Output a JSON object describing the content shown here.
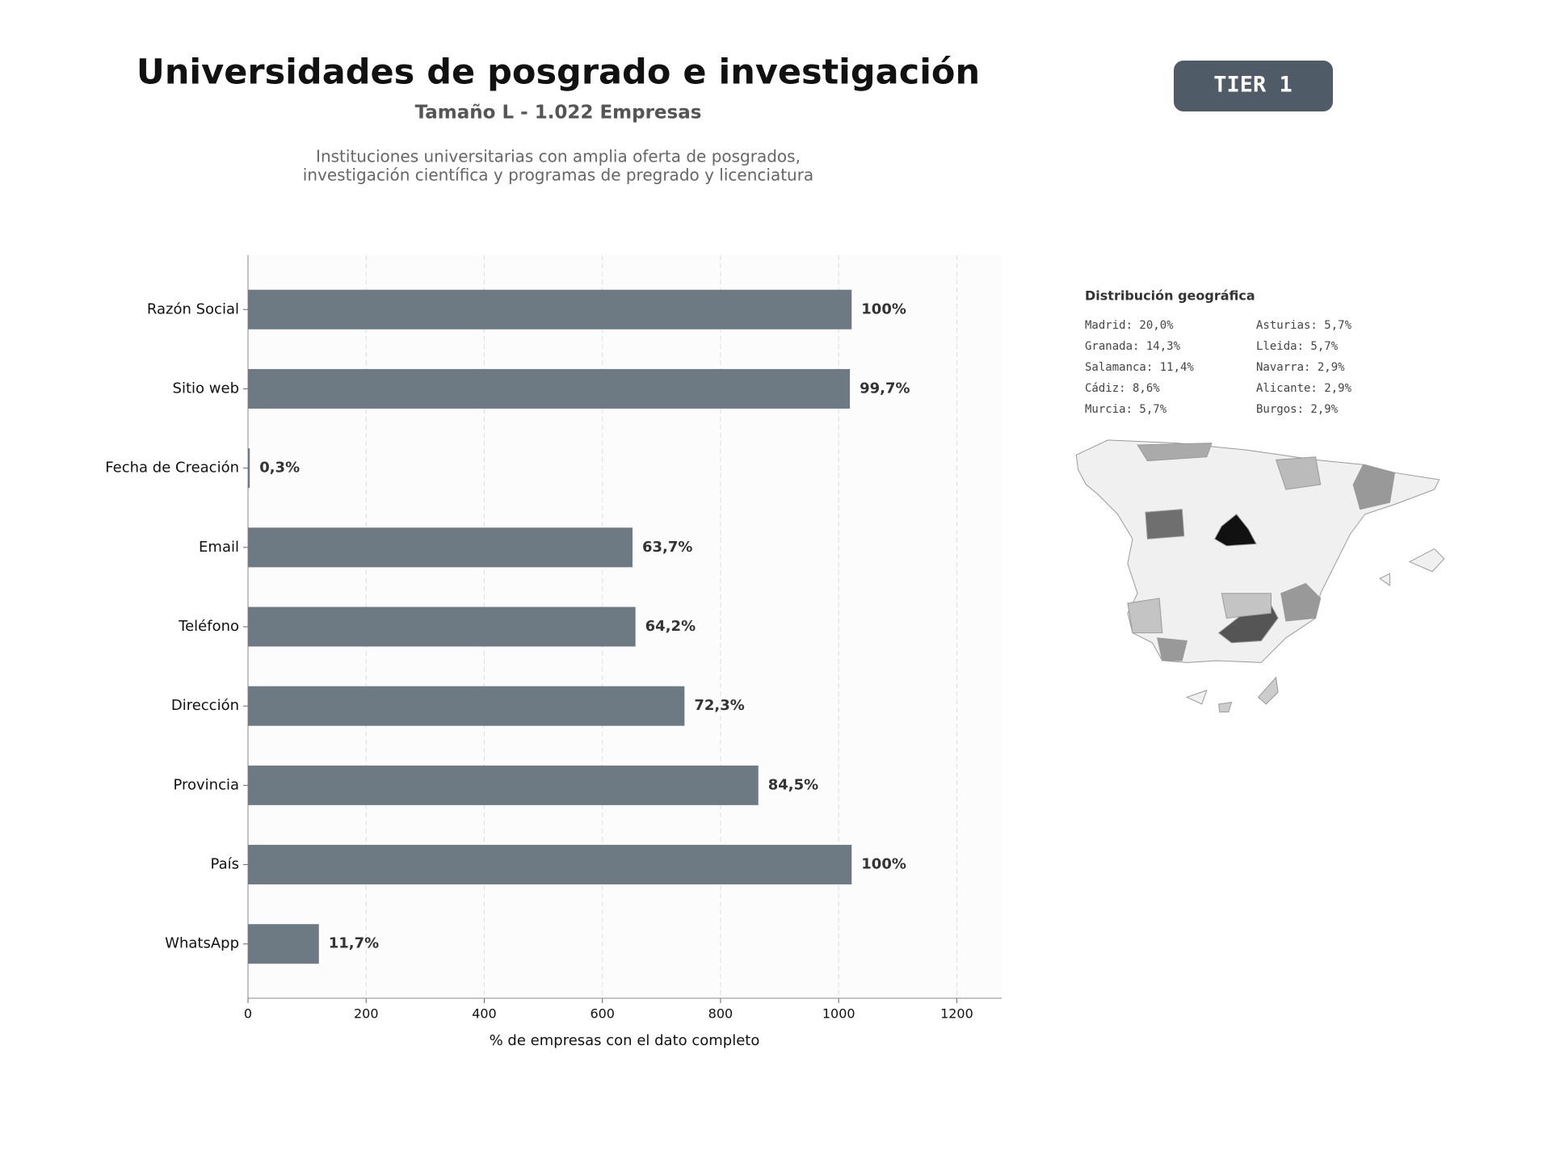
{
  "chart_data": {
    "type": "bar",
    "orientation": "horizontal",
    "title": "Universidades de posgrado e investigación",
    "subtitle": "Tamaño L - 1.022 Empresas",
    "description": [
      "Instituciones universitarias con amplia oferta de posgrados,",
      "investigación científica y programas de pregrado y licenciatura"
    ],
    "badge": "TIER 1",
    "xlabel": "% de empresas con el dato completo",
    "categories": [
      "Razón Social",
      "Sitio web",
      "Fecha de Creación",
      "Email",
      "Teléfono",
      "Dirección",
      "Provincia",
      "País",
      "WhatsApp"
    ],
    "values": [
      1022,
      1019,
      3,
      651,
      656,
      739,
      864,
      1022,
      120
    ],
    "value_labels": [
      "100%",
      "99,7%",
      "0,3%",
      "63,7%",
      "64,2%",
      "72,3%",
      "84,5%",
      "100%",
      "11,7%"
    ],
    "color": "#6e7a83",
    "xlim": [
      0,
      1276
    ],
    "xticks": [
      0,
      200,
      400,
      600,
      800,
      1000,
      1200
    ],
    "grid": true,
    "geo_distribution": {
      "title": "Distribución geográfica",
      "items": [
        "Madrid: 20,0%",
        "Granada: 14,3%",
        "Salamanca: 11,4%",
        "Cádiz: 8,6%",
        "Murcia: 5,7%",
        "Asturias: 5,7%",
        "Lleida: 5,7%",
        "Navarra: 2,9%",
        "Alicante: 2,9%",
        "Burgos: 2,9%"
      ]
    }
  }
}
